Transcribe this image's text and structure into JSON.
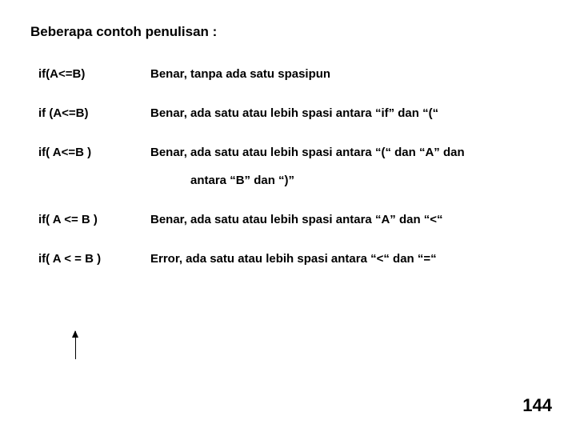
{
  "title": "Beberapa contoh penulisan :",
  "rows": [
    {
      "code": "if(A<=B)",
      "desc": "Benar, tanpa ada satu spasipun"
    },
    {
      "code": "if  (A<=B)",
      "desc": "Benar, ada satu atau lebih spasi antara “if” dan  “(“"
    },
    {
      "code": "if( A<=B )",
      "desc": "Benar, ada satu atau lebih spasi antara “(“ dan “A” dan"
    },
    {
      "code": "if( A <= B )",
      "desc": "Benar, ada satu atau lebih spasi antara  “A” dan “<“"
    },
    {
      "code": "if( A < = B )",
      "desc": "Error, ada satu atau lebih spasi antara  “<“ dan “=“"
    }
  ],
  "sub_row": "antara “B” dan “)”",
  "page_number": "144",
  "colors": {
    "bg": "#ffffff",
    "text": "#000000"
  },
  "fonts": {
    "family": "Comic Sans MS",
    "title_size": 17,
    "row_size": 15,
    "page_num_size": 22
  }
}
